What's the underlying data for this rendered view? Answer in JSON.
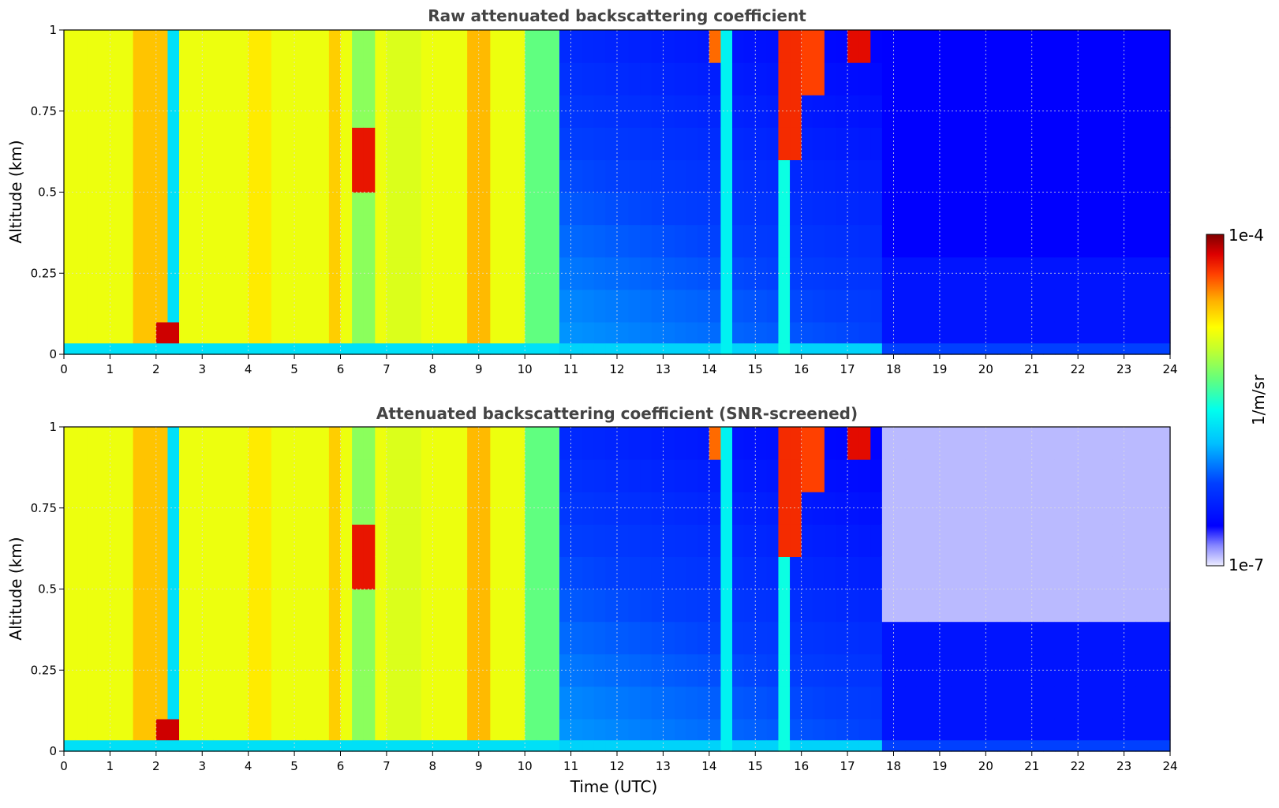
{
  "chart_data": [
    {
      "type": "heatmap",
      "title": "Raw attenuated backscattering coefficient",
      "xlabel": "",
      "ylabel": "Altitude (km)",
      "xlim": [
        0,
        24
      ],
      "ylim": [
        0,
        1
      ],
      "x_ticks": [
        "0",
        "1",
        "2",
        "3",
        "4",
        "5",
        "6",
        "7",
        "8",
        "9",
        "10",
        "11",
        "12",
        "13",
        "14",
        "15",
        "16",
        "17",
        "18",
        "19",
        "20",
        "21",
        "22",
        "23",
        "24"
      ],
      "y_ticks": [
        "0",
        "0.25",
        "0.5",
        "0.75",
        "1"
      ],
      "grid": true,
      "screened": false
    },
    {
      "type": "heatmap",
      "title": "Attenuated backscattering coefficient (SNR-screened)",
      "xlabel": "Time (UTC)",
      "ylabel": "Altitude (km)",
      "xlim": [
        0,
        24
      ],
      "ylim": [
        0,
        1
      ],
      "x_ticks": [
        "0",
        "1",
        "2",
        "3",
        "4",
        "5",
        "6",
        "7",
        "8",
        "9",
        "10",
        "11",
        "12",
        "13",
        "14",
        "15",
        "16",
        "17",
        "18",
        "19",
        "20",
        "21",
        "22",
        "23",
        "24"
      ],
      "y_ticks": [
        "0",
        "0.25",
        "0.5",
        "0.75",
        "1"
      ],
      "grid": true,
      "screened": true
    }
  ],
  "colorbar": {
    "max_label": "1e-4",
    "min_label": "1e-7",
    "label": "1/m/sr",
    "placement": "right",
    "scale": "log"
  }
}
